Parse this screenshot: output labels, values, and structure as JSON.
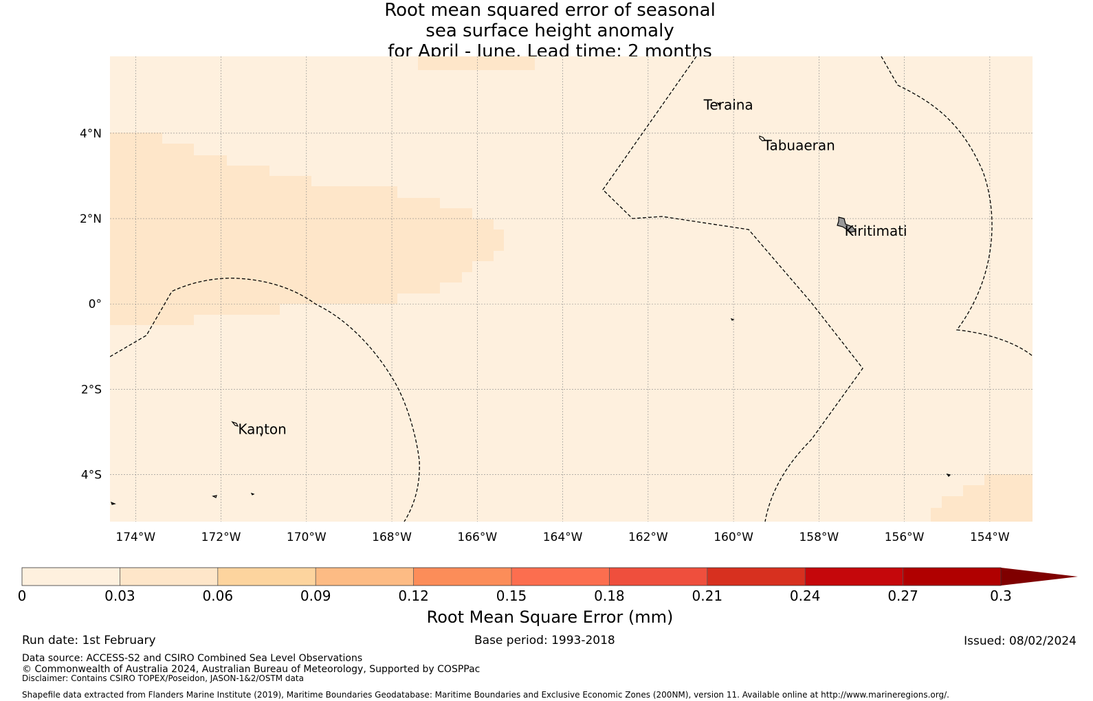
{
  "title": {
    "line1": "Root mean squared error of seasonal",
    "line2": "sea surface height anomaly",
    "line3": "for April - June. Lead time: 2 months"
  },
  "map": {
    "lon_range": [
      -174.6,
      -153.0
    ],
    "lat_range": [
      -5.1,
      5.8
    ],
    "lon_ticks": [
      {
        "value": -174,
        "label": "174°W"
      },
      {
        "value": -172,
        "label": "172°W"
      },
      {
        "value": -170,
        "label": "170°W"
      },
      {
        "value": -168,
        "label": "168°W"
      },
      {
        "value": -166,
        "label": "166°W"
      },
      {
        "value": -164,
        "label": "164°W"
      },
      {
        "value": -162,
        "label": "162°W"
      },
      {
        "value": -160,
        "label": "160°W"
      },
      {
        "value": -158,
        "label": "158°W"
      },
      {
        "value": -156,
        "label": "156°W"
      },
      {
        "value": -154,
        "label": "154°W"
      }
    ],
    "lat_ticks": [
      {
        "value": 4,
        "label": "4°N"
      },
      {
        "value": 2,
        "label": "2°N"
      },
      {
        "value": 0,
        "label": "0°"
      },
      {
        "value": -2,
        "label": "2°S"
      },
      {
        "value": -4,
        "label": "4°S"
      }
    ],
    "place_labels": [
      {
        "name": "Teraina",
        "lon": -160.7,
        "lat": 4.55
      },
      {
        "name": "Tabuaeran",
        "lon": -159.3,
        "lat": 3.6
      },
      {
        "name": "Kiritimati",
        "lon": -157.4,
        "lat": 1.6
      },
      {
        "name": "Kanton",
        "lon": -171.6,
        "lat": -3.05
      }
    ],
    "field": {
      "base_color": "#fef0de",
      "low_band_color": "#fee6c9"
    }
  },
  "colorbar": {
    "ticks": [
      "0",
      "0.03",
      "0.06",
      "0.09",
      "0.12",
      "0.15",
      "0.18",
      "0.21",
      "0.24",
      "0.27",
      "0.3"
    ],
    "colors": [
      "#fef0de",
      "#fee6c9",
      "#fdd49e",
      "#fdbb84",
      "#fc8d59",
      "#fc6e4f",
      "#ef4f3d",
      "#d7301f",
      "#c5070b",
      "#b00000"
    ],
    "extend_color": "#7f0000",
    "label": "Root Mean Square Error (mm)"
  },
  "footer": {
    "run_date": "Run date: 1st February",
    "base_period": "Base period: 1993-2018",
    "issued": "Issued: 08/02/2024",
    "data_source": "Data source: ACCESS-S2 and CSIRO Combined Sea Level Observations",
    "copyright": "© Commonwealth of Australia 2024, Australian Bureau of Meteorology, Supported by COSPPac",
    "disclaimer": "Disclaimer: Contains CSIRO TOPEX/Poseidon, JASON-1&2/OSTM data",
    "shapefile": "Shapefile data extracted from Flanders Marine Institute (2019), Maritime Boundaries Geodatabase: Maritime Boundaries and Exclusive Economic Zones (200NM), version 11. Available online at http://www.marineregions.org/."
  }
}
